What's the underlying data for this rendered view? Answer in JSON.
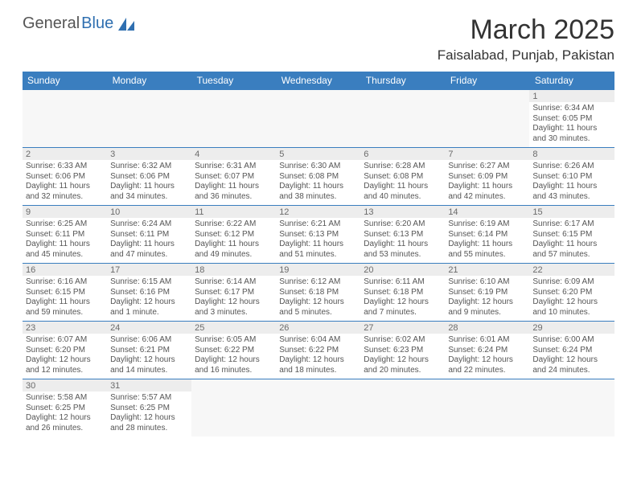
{
  "logo": {
    "part1": "General",
    "part2": "Blue"
  },
  "title": "March 2025",
  "subtitle": "Faisalabad, Punjab, Pakistan",
  "colors": {
    "header_bg": "#3a7ebf",
    "header_text": "#ffffff",
    "grid_border": "#3a7ebf",
    "daynum_bg": "#ededed",
    "text": "#555555",
    "logo_gray": "#555555",
    "logo_blue": "#2f6fb0"
  },
  "font_sizes": {
    "title": 34,
    "subtitle": 17,
    "header": 12,
    "cell": 10
  },
  "day_names": [
    "Sunday",
    "Monday",
    "Tuesday",
    "Wednesday",
    "Thursday",
    "Friday",
    "Saturday"
  ],
  "weeks": [
    [
      null,
      null,
      null,
      null,
      null,
      null,
      {
        "n": "1",
        "sr": "6:34 AM",
        "ss": "6:05 PM",
        "dl1": "11 hours",
        "dl2": "and 30 minutes."
      }
    ],
    [
      {
        "n": "2",
        "sr": "6:33 AM",
        "ss": "6:06 PM",
        "dl1": "11 hours",
        "dl2": "and 32 minutes."
      },
      {
        "n": "3",
        "sr": "6:32 AM",
        "ss": "6:06 PM",
        "dl1": "11 hours",
        "dl2": "and 34 minutes."
      },
      {
        "n": "4",
        "sr": "6:31 AM",
        "ss": "6:07 PM",
        "dl1": "11 hours",
        "dl2": "and 36 minutes."
      },
      {
        "n": "5",
        "sr": "6:30 AM",
        "ss": "6:08 PM",
        "dl1": "11 hours",
        "dl2": "and 38 minutes."
      },
      {
        "n": "6",
        "sr": "6:28 AM",
        "ss": "6:08 PM",
        "dl1": "11 hours",
        "dl2": "and 40 minutes."
      },
      {
        "n": "7",
        "sr": "6:27 AM",
        "ss": "6:09 PM",
        "dl1": "11 hours",
        "dl2": "and 42 minutes."
      },
      {
        "n": "8",
        "sr": "6:26 AM",
        "ss": "6:10 PM",
        "dl1": "11 hours",
        "dl2": "and 43 minutes."
      }
    ],
    [
      {
        "n": "9",
        "sr": "6:25 AM",
        "ss": "6:11 PM",
        "dl1": "11 hours",
        "dl2": "and 45 minutes."
      },
      {
        "n": "10",
        "sr": "6:24 AM",
        "ss": "6:11 PM",
        "dl1": "11 hours",
        "dl2": "and 47 minutes."
      },
      {
        "n": "11",
        "sr": "6:22 AM",
        "ss": "6:12 PM",
        "dl1": "11 hours",
        "dl2": "and 49 minutes."
      },
      {
        "n": "12",
        "sr": "6:21 AM",
        "ss": "6:13 PM",
        "dl1": "11 hours",
        "dl2": "and 51 minutes."
      },
      {
        "n": "13",
        "sr": "6:20 AM",
        "ss": "6:13 PM",
        "dl1": "11 hours",
        "dl2": "and 53 minutes."
      },
      {
        "n": "14",
        "sr": "6:19 AM",
        "ss": "6:14 PM",
        "dl1": "11 hours",
        "dl2": "and 55 minutes."
      },
      {
        "n": "15",
        "sr": "6:17 AM",
        "ss": "6:15 PM",
        "dl1": "11 hours",
        "dl2": "and 57 minutes."
      }
    ],
    [
      {
        "n": "16",
        "sr": "6:16 AM",
        "ss": "6:15 PM",
        "dl1": "11 hours",
        "dl2": "and 59 minutes."
      },
      {
        "n": "17",
        "sr": "6:15 AM",
        "ss": "6:16 PM",
        "dl1": "12 hours",
        "dl2": "and 1 minute."
      },
      {
        "n": "18",
        "sr": "6:14 AM",
        "ss": "6:17 PM",
        "dl1": "12 hours",
        "dl2": "and 3 minutes."
      },
      {
        "n": "19",
        "sr": "6:12 AM",
        "ss": "6:18 PM",
        "dl1": "12 hours",
        "dl2": "and 5 minutes."
      },
      {
        "n": "20",
        "sr": "6:11 AM",
        "ss": "6:18 PM",
        "dl1": "12 hours",
        "dl2": "and 7 minutes."
      },
      {
        "n": "21",
        "sr": "6:10 AM",
        "ss": "6:19 PM",
        "dl1": "12 hours",
        "dl2": "and 9 minutes."
      },
      {
        "n": "22",
        "sr": "6:09 AM",
        "ss": "6:20 PM",
        "dl1": "12 hours",
        "dl2": "and 10 minutes."
      }
    ],
    [
      {
        "n": "23",
        "sr": "6:07 AM",
        "ss": "6:20 PM",
        "dl1": "12 hours",
        "dl2": "and 12 minutes."
      },
      {
        "n": "24",
        "sr": "6:06 AM",
        "ss": "6:21 PM",
        "dl1": "12 hours",
        "dl2": "and 14 minutes."
      },
      {
        "n": "25",
        "sr": "6:05 AM",
        "ss": "6:22 PM",
        "dl1": "12 hours",
        "dl2": "and 16 minutes."
      },
      {
        "n": "26",
        "sr": "6:04 AM",
        "ss": "6:22 PM",
        "dl1": "12 hours",
        "dl2": "and 18 minutes."
      },
      {
        "n": "27",
        "sr": "6:02 AM",
        "ss": "6:23 PM",
        "dl1": "12 hours",
        "dl2": "and 20 minutes."
      },
      {
        "n": "28",
        "sr": "6:01 AM",
        "ss": "6:24 PM",
        "dl1": "12 hours",
        "dl2": "and 22 minutes."
      },
      {
        "n": "29",
        "sr": "6:00 AM",
        "ss": "6:24 PM",
        "dl1": "12 hours",
        "dl2": "and 24 minutes."
      }
    ],
    [
      {
        "n": "30",
        "sr": "5:58 AM",
        "ss": "6:25 PM",
        "dl1": "12 hours",
        "dl2": "and 26 minutes."
      },
      {
        "n": "31",
        "sr": "5:57 AM",
        "ss": "6:25 PM",
        "dl1": "12 hours",
        "dl2": "and 28 minutes."
      },
      null,
      null,
      null,
      null,
      null
    ]
  ],
  "labels": {
    "sunrise": "Sunrise:",
    "sunset": "Sunset:",
    "daylight": "Daylight:"
  }
}
